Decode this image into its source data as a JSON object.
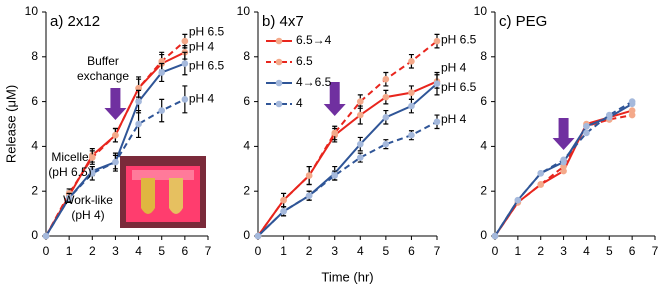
{
  "chart_data": [
    {
      "type": "line",
      "title": "a) 2x12",
      "ylabel": "Release (μM)",
      "x": [
        0,
        1,
        2,
        3,
        4,
        5,
        6
      ],
      "xlim": [
        0,
        7
      ],
      "xticks": [
        0,
        1,
        2,
        3,
        4,
        5,
        6,
        7
      ],
      "ylim": [
        0,
        10
      ],
      "yticks": [
        0,
        2,
        4,
        6,
        8,
        10
      ],
      "arrow_at": 3,
      "series": [
        {
          "name": "6.5→4",
          "color": "#e8251d",
          "marker_color": "#f4a98a",
          "dash": false,
          "end_label": "pH 4",
          "values": [
            0,
            1.8,
            3.6,
            4.5,
            6.6,
            7.7,
            8.2
          ],
          "errors": [
            null,
            0.2,
            0.3,
            0.3,
            0.5,
            0.4,
            0.3
          ]
        },
        {
          "name": "6.5",
          "color": "#e8251d",
          "marker_color": "#f4a98a",
          "dash": true,
          "end_label": "pH 6.5",
          "values": [
            0,
            1.9,
            3.5,
            4.5,
            6.6,
            7.8,
            8.7
          ],
          "errors": [
            null,
            0.2,
            0.3,
            0.3,
            0.4,
            0.4,
            0.3
          ]
        },
        {
          "name": "4→6.5",
          "color": "#2f5597",
          "marker_color": "#a5b9dc",
          "dash": false,
          "end_label": "pH 6.5",
          "values": [
            0,
            1.7,
            2.9,
            3.3,
            6.0,
            7.3,
            7.7
          ],
          "errors": [
            null,
            0.2,
            0.2,
            0.3,
            0.5,
            0.4,
            0.5
          ]
        },
        {
          "name": "4",
          "color": "#2f5597",
          "marker_color": "#a5b9dc",
          "dash": true,
          "end_label": "pH 4",
          "values": [
            0,
            1.7,
            2.8,
            3.3,
            5.0,
            5.6,
            6.1
          ],
          "errors": [
            null,
            0.2,
            0.3,
            0.4,
            0.6,
            0.5,
            0.6
          ]
        }
      ],
      "annotations": [
        {
          "lines": [
            "Buffer",
            "exchange"
          ],
          "color": "#7030a0"
        },
        {
          "lines": [
            "Micelle",
            "(pH 6.5)"
          ],
          "color": "#e8251d"
        },
        {
          "lines": [
            "Work-like",
            "(pH 4)"
          ],
          "color": "#2f5597"
        }
      ]
    },
    {
      "type": "line",
      "title": "b) 4x7",
      "xlabel": "Time (hr)",
      "x": [
        0,
        1,
        2,
        3,
        4,
        5,
        6,
        7
      ],
      "xlim": [
        0,
        7
      ],
      "xticks": [
        0,
        1,
        2,
        3,
        4,
        5,
        6,
        7
      ],
      "ylim": [
        0,
        10
      ],
      "yticks": [
        0,
        2,
        4,
        6,
        8,
        10
      ],
      "arrow_at": 3,
      "legend": "upper-left",
      "series": [
        {
          "name": "6.5→4",
          "color": "#e8251d",
          "marker_color": "#f4a98a",
          "dash": false,
          "end_label": "pH 4",
          "values": [
            0,
            1.6,
            2.7,
            4.5,
            5.4,
            6.2,
            6.4,
            6.9
          ],
          "errors": [
            null,
            0.3,
            0.4,
            0.3,
            0.4,
            0.3,
            0.3,
            0.3
          ]
        },
        {
          "name": "6.5",
          "color": "#e8251d",
          "marker_color": "#f4a98a",
          "dash": true,
          "end_label": "pH 6.5",
          "values": [
            0,
            1.6,
            2.7,
            4.6,
            6.0,
            7.0,
            7.8,
            8.7
          ],
          "errors": [
            null,
            0.3,
            0.4,
            0.3,
            0.3,
            0.3,
            0.3,
            0.3
          ]
        },
        {
          "name": "4→6.5",
          "color": "#2f5597",
          "marker_color": "#a5b9dc",
          "dash": false,
          "end_label": "pH 6.5",
          "values": [
            0,
            1.1,
            1.8,
            2.8,
            4.1,
            5.3,
            5.8,
            6.8
          ],
          "errors": [
            null,
            0.2,
            0.2,
            0.3,
            0.3,
            0.3,
            0.3,
            0.5
          ]
        },
        {
          "name": "4",
          "color": "#2f5597",
          "marker_color": "#a5b9dc",
          "dash": true,
          "end_label": "pH 4",
          "values": [
            0,
            1.1,
            1.8,
            2.7,
            3.5,
            4.1,
            4.5,
            5.1
          ],
          "errors": [
            null,
            0.2,
            0.2,
            0.2,
            0.2,
            0.2,
            0.2,
            0.3
          ]
        }
      ]
    },
    {
      "type": "line",
      "title": "c) PEG",
      "x": [
        0,
        1,
        2,
        3,
        4,
        5,
        6
      ],
      "xlim": [
        0,
        7
      ],
      "xticks": [
        0,
        1,
        2,
        3,
        4,
        5,
        6,
        7
      ],
      "ylim": [
        0,
        10
      ],
      "yticks": [
        0,
        2,
        4,
        6,
        8,
        10
      ],
      "arrow_at": 3,
      "series": [
        {
          "name": "6.5→4",
          "color": "#e8251d",
          "marker_color": "#f4a98a",
          "dash": false,
          "values": [
            0,
            1.5,
            2.3,
            2.9,
            5.0,
            5.3,
            5.6
          ]
        },
        {
          "name": "6.5",
          "color": "#e8251d",
          "marker_color": "#f4a98a",
          "dash": true,
          "values": [
            0,
            1.5,
            2.3,
            3.1,
            4.9,
            5.2,
            5.4
          ]
        },
        {
          "name": "4→6.5",
          "color": "#2f5597",
          "marker_color": "#a5b9dc",
          "dash": false,
          "values": [
            0,
            1.6,
            2.8,
            3.3,
            4.9,
            5.3,
            5.9
          ]
        },
        {
          "name": "4",
          "color": "#2f5597",
          "marker_color": "#a5b9dc",
          "dash": true,
          "values": [
            0,
            1.6,
            2.8,
            3.4,
            4.6,
            5.4,
            6.0
          ]
        }
      ]
    }
  ]
}
